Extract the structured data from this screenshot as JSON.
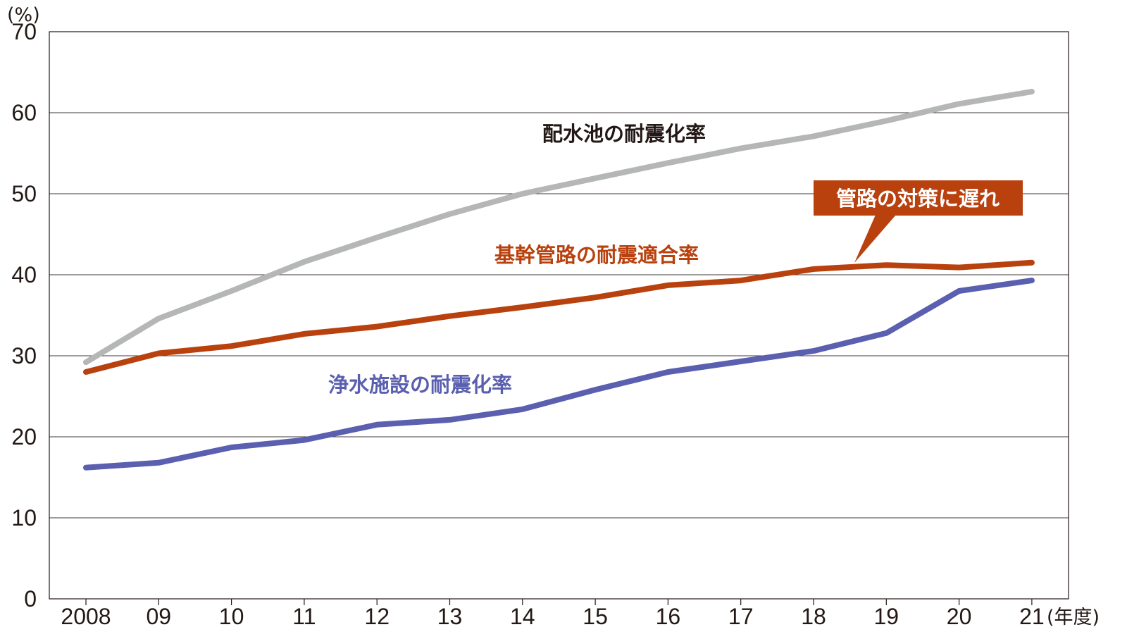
{
  "chart_data": {
    "type": "line",
    "y_unit": "(%)",
    "x_unit": "(年度)",
    "categories": [
      "2008",
      "09",
      "10",
      "11",
      "12",
      "13",
      "14",
      "15",
      "16",
      "17",
      "18",
      "19",
      "20",
      "21"
    ],
    "ylim": [
      0,
      70
    ],
    "yticks": [
      0,
      10,
      20,
      30,
      40,
      50,
      60,
      70
    ],
    "grid": true,
    "series": [
      {
        "name": "配水池の耐震化率",
        "color": "#b5b7b6",
        "values": [
          29.2,
          34.6,
          38.0,
          41.6,
          44.6,
          47.5,
          50.0,
          51.9,
          53.8,
          55.6,
          57.1,
          59.0,
          61.1,
          62.6
        ]
      },
      {
        "name": "基幹管路の耐震適合率",
        "color": "#b8410e",
        "values": [
          28.0,
          30.3,
          31.2,
          32.7,
          33.6,
          34.9,
          36.0,
          37.2,
          38.7,
          39.3,
          40.7,
          41.2,
          40.9,
          41.5
        ]
      },
      {
        "name": "浄水施設の耐震化率",
        "color": "#5a5faf",
        "values": [
          16.2,
          16.8,
          18.7,
          19.6,
          21.5,
          22.1,
          23.4,
          25.8,
          28.0,
          29.3,
          30.6,
          32.8,
          38.0,
          39.3
        ]
      }
    ],
    "annotation": {
      "text": "管路の対策に遅れ",
      "color": "#b8410e"
    }
  }
}
